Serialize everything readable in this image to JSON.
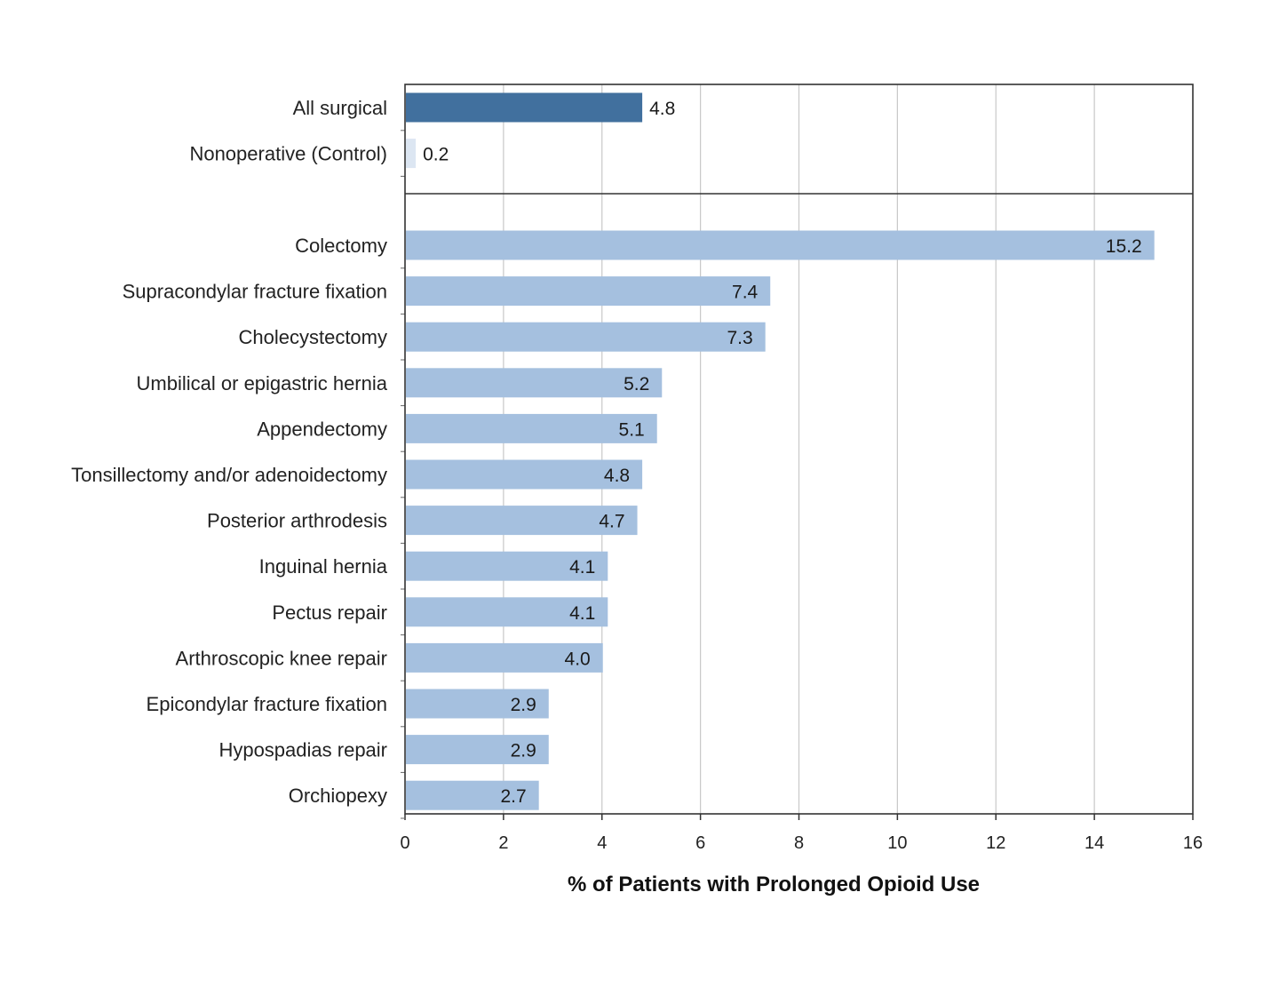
{
  "chart_data": {
    "type": "bar",
    "orientation": "horizontal",
    "xlabel": "% of Patients with Prolonged Opioid Use",
    "ylabel": "",
    "xlim": [
      0,
      16
    ],
    "xticks": [
      0,
      2,
      4,
      6,
      8,
      10,
      12,
      14,
      16
    ],
    "grid": "vertical",
    "groups": [
      {
        "categories": [
          "All surgical",
          "Nonoperative (Control)"
        ],
        "values": [
          4.8,
          0.2
        ],
        "value_labels": [
          "4.8",
          "0.2"
        ],
        "colors": [
          "#41709e",
          "#dce6f2"
        ]
      },
      {
        "categories": [
          "Colectomy",
          "Supracondylar fracture fixation",
          "Cholecystectomy",
          "Umbilical or epigastric hernia",
          "Appendectomy",
          "Tonsillectomy and/or adenoidectomy",
          "Posterior arthrodesis",
          "Inguinal hernia",
          "Pectus repair",
          "Arthroscopic knee repair",
          "Epicondylar fracture fixation",
          "Hypospadias repair",
          "Orchiopexy"
        ],
        "values": [
          15.2,
          7.4,
          7.3,
          5.2,
          5.1,
          4.8,
          4.7,
          4.1,
          4.1,
          4.0,
          2.9,
          2.9,
          2.7
        ],
        "value_labels": [
          "15.2",
          "7.4",
          "7.3",
          "5.2",
          "5.1",
          "4.8",
          "4.7",
          "4.1",
          "4.1",
          "4.0",
          "2.9",
          "2.9",
          "2.7"
        ],
        "colors": [
          "#a5c0df"
        ]
      }
    ]
  }
}
